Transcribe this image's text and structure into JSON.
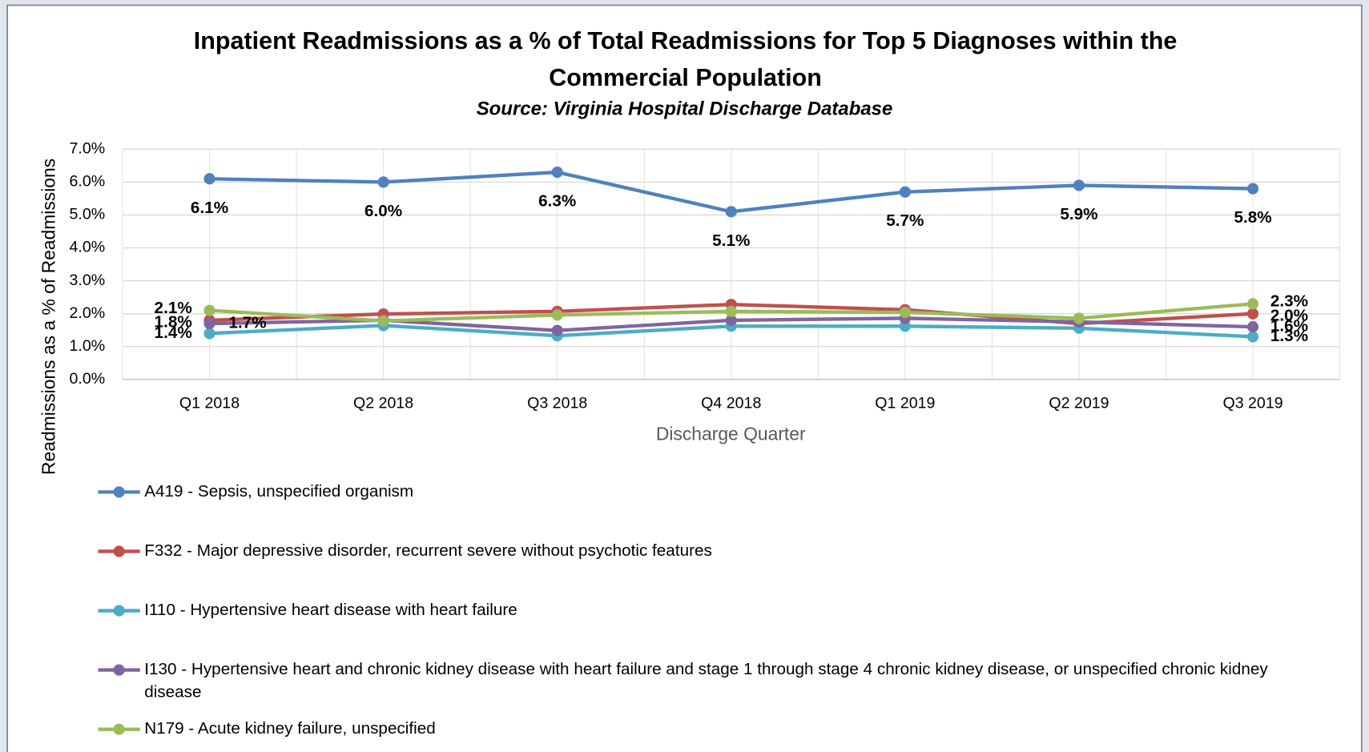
{
  "chart_data": {
    "type": "line",
    "title": "Inpatient Readmissions as a % of Total Readmissions for Top 5 Diagnoses within the Commercial Population",
    "subtitle": "Source: Virginia Hospital Discharge Database",
    "x_label": "Discharge Quarter",
    "y_label": "Readmissions as a % of Readmissions",
    "categories": [
      "Q1 2018",
      "Q2 2018",
      "Q3 2018",
      "Q4 2018",
      "Q1 2019",
      "Q2 2019",
      "Q3 2019"
    ],
    "ylim": [
      0,
      7
    ],
    "yticks": [
      {
        "value": 0,
        "label": "0.0%"
      },
      {
        "value": 1,
        "label": "1.0%"
      },
      {
        "value": 2,
        "label": "2.0%"
      },
      {
        "value": 3,
        "label": "3.0%"
      },
      {
        "value": 4,
        "label": "4.0%"
      },
      {
        "value": 5,
        "label": "5.0%"
      },
      {
        "value": 6,
        "label": "6.0%"
      },
      {
        "value": 7,
        "label": "7.0%"
      }
    ],
    "grid": true,
    "legend": "bottom",
    "series": [
      {
        "name": "A419 - Sepsis, unspecified organism",
        "color": "#4f81bd",
        "values": [
          6.1,
          6.0,
          6.3,
          5.1,
          5.7,
          5.9,
          5.8
        ],
        "value_labels": [
          "6.1%",
          "6.0%",
          "6.3%",
          "5.1%",
          "5.7%",
          "5.9%",
          "5.8%"
        ]
      },
      {
        "name": "F332 - Major depressive disorder, recurrent severe without psychotic features",
        "color": "#c0504d",
        "values": [
          1.8,
          1.99,
          2.07,
          2.28,
          2.12,
          1.7,
          2.0
        ],
        "value_labels": [
          "1.8%",
          null,
          null,
          null,
          null,
          null,
          "2.0%"
        ]
      },
      {
        "name": "I110 - Hypertensive heart disease with heart failure",
        "color": "#4bacc6",
        "values": [
          1.4,
          1.64,
          1.33,
          1.62,
          1.62,
          1.56,
          1.3
        ],
        "value_labels": [
          "1.4%",
          null,
          null,
          null,
          null,
          null,
          "1.3%"
        ]
      },
      {
        "name": "I130 - Hypertensive heart and chronic kidney disease with heart failure and stage 1 through stage 4 chronic kidney disease, or unspecified chronic kidney disease",
        "color": "#8064a2",
        "values": [
          1.7,
          1.8,
          1.49,
          1.8,
          1.86,
          1.75,
          1.6
        ],
        "value_labels": [
          "1.7%",
          null,
          null,
          null,
          null,
          null,
          "1.6%"
        ]
      },
      {
        "name": "N179 - Acute kidney failure, unspecified",
        "color": "#9bbb59",
        "values": [
          2.1,
          1.78,
          1.96,
          2.07,
          2.04,
          1.86,
          2.3
        ],
        "value_labels": [
          "2.1%",
          null,
          null,
          null,
          null,
          null,
          "2.3%"
        ]
      }
    ]
  }
}
